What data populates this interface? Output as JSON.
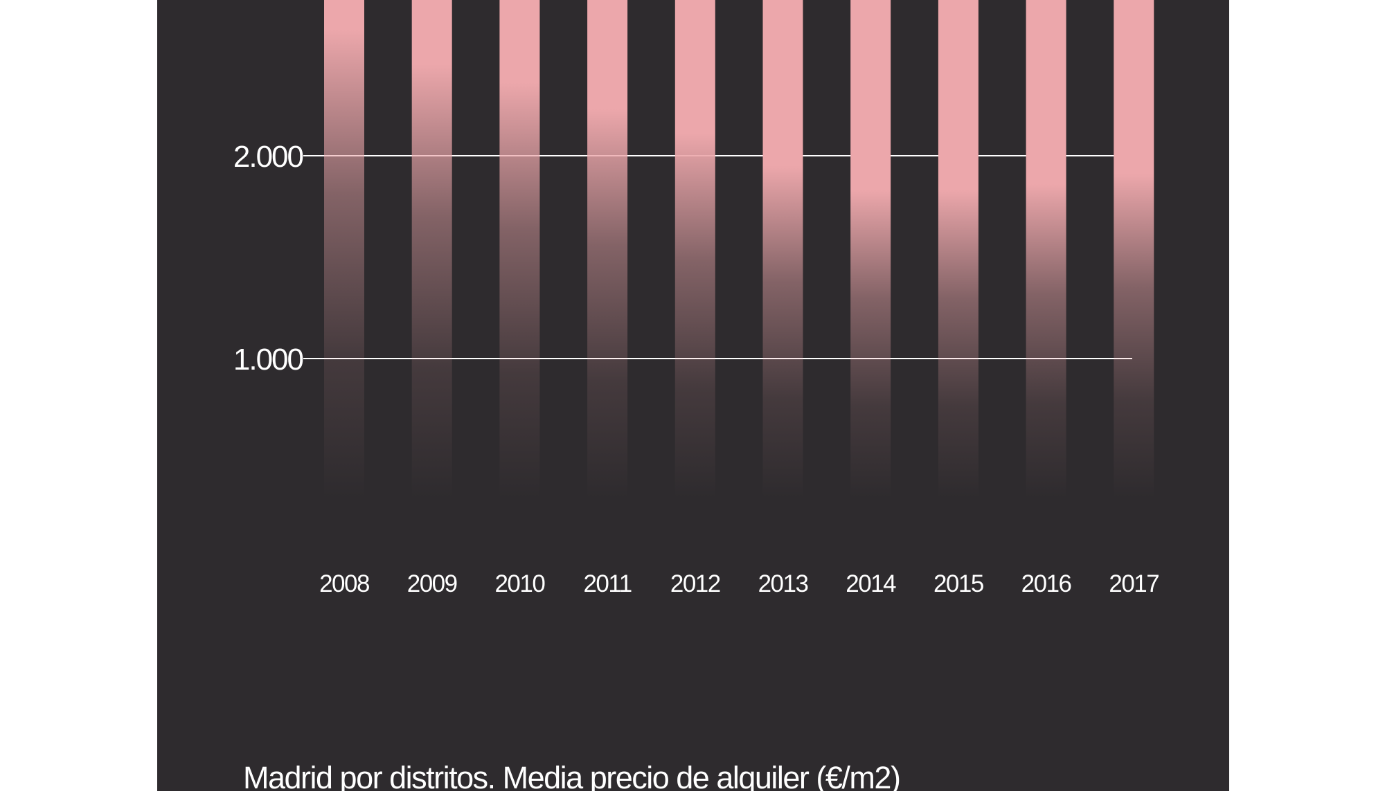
{
  "colors": {
    "background": "#2e2b2e",
    "bar": "#eca7ab",
    "gridline": "#ffffff",
    "text": "#ffffff"
  },
  "caption": "Madrid por distritos. Media precio de alquiler (€/m2)",
  "chart_data": {
    "type": "bar",
    "categories": [
      "2008",
      "2009",
      "2010",
      "2011",
      "2012",
      "2013",
      "2014",
      "2015",
      "2016",
      "2017"
    ],
    "values": [
      2770,
      2770,
      2770,
      2770,
      2770,
      2770,
      2770,
      2770,
      2770,
      2770
    ],
    "solid_from": [
      2620,
      2450,
      2360,
      2230,
      2110,
      1950,
      1830,
      1830,
      1860,
      1910
    ],
    "y_ticks": [
      {
        "value": 1000,
        "label": "1.000"
      },
      {
        "value": 2000,
        "label": "2.000"
      }
    ],
    "ylim": [
      0,
      2770
    ],
    "grid": true,
    "title": "",
    "xlabel": "",
    "ylabel": ""
  }
}
